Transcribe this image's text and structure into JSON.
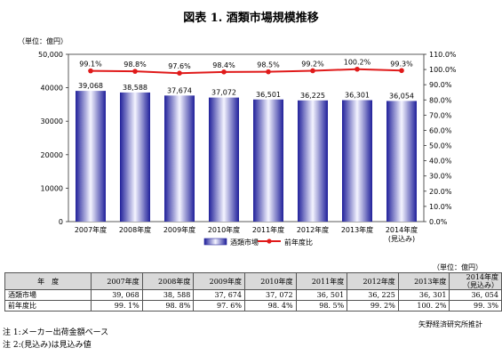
{
  "title": "図表 1. 酒類市場規模推移",
  "chart_data": {
    "type": "bar",
    "categories": [
      "2007年度",
      "2008年度",
      "2009年度",
      "2010年度",
      "2011年度",
      "2012年度",
      "2013年度",
      "2014年度"
    ],
    "category_sub": [
      "",
      "",
      "",
      "",
      "",
      "",
      "",
      "(見込み)"
    ],
    "series": [
      {
        "name": "酒類市場",
        "type": "bar",
        "axis": "left",
        "values": [
          39068,
          38588,
          37674,
          37072,
          36501,
          36225,
          36301,
          36054
        ],
        "labels": [
          "39,068",
          "38,588",
          "37,674",
          "37,072",
          "36,501",
          "36,225",
          "36,301",
          "36,054"
        ]
      },
      {
        "name": "前年度比",
        "type": "line",
        "axis": "right",
        "values": [
          99.1,
          98.8,
          97.6,
          98.4,
          98.5,
          99.2,
          100.2,
          99.3
        ],
        "labels": [
          "99.1%",
          "98.8%",
          "97.6%",
          "98.4%",
          "98.5%",
          "99.2%",
          "100.2%",
          "99.3%"
        ]
      }
    ],
    "y_left": {
      "unit": "（単位：億円）",
      "ylim": [
        0,
        50000
      ],
      "ticks": [
        0,
        10000,
        20000,
        30000,
        40000,
        50000
      ],
      "tick_labels": [
        "0",
        "10000",
        "20000",
        "30000",
        "40000",
        "50,000"
      ]
    },
    "y_right": {
      "ylim": [
        0,
        110
      ],
      "ticks": [
        0,
        10,
        20,
        30,
        40,
        50,
        60,
        70,
        80,
        90,
        100,
        110
      ],
      "tick_labels": [
        "0.0%",
        "10.0%",
        "20.0%",
        "30.0%",
        "40.0%",
        "50.0%",
        "60.0%",
        "70.0%",
        "80.0%",
        "90.0%",
        "100.0%",
        "110.0%"
      ]
    },
    "legend_position": "bottom",
    "bar_color": "#2a2aa0",
    "line_color": "#e01a1a"
  },
  "table": {
    "unit": "（単位：億円）",
    "header_label": "年　度",
    "years": [
      "2007年度",
      "2008年度",
      "2009年度",
      "2010年度",
      "2011年度",
      "2012年度",
      "2013年度"
    ],
    "last_year": [
      "2014年度",
      "（見込み）"
    ],
    "rows": [
      {
        "label": "酒類市場",
        "values": [
          "39, 068",
          "38, 588",
          "37, 674",
          "37, 072",
          "36, 501",
          "36, 225",
          "36, 301",
          "36, 054"
        ]
      },
      {
        "label": "前年度比",
        "values": [
          "99. 1%",
          "98. 8%",
          "97. 6%",
          "98. 4%",
          "98. 5%",
          "99. 2%",
          "100. 2%",
          "99. 3%"
        ]
      }
    ]
  },
  "source": "矢野経済研究所推計",
  "notes": [
    "注 1:メーカー出荷金額ベース",
    "注 2:(見込み)は見込み値"
  ]
}
